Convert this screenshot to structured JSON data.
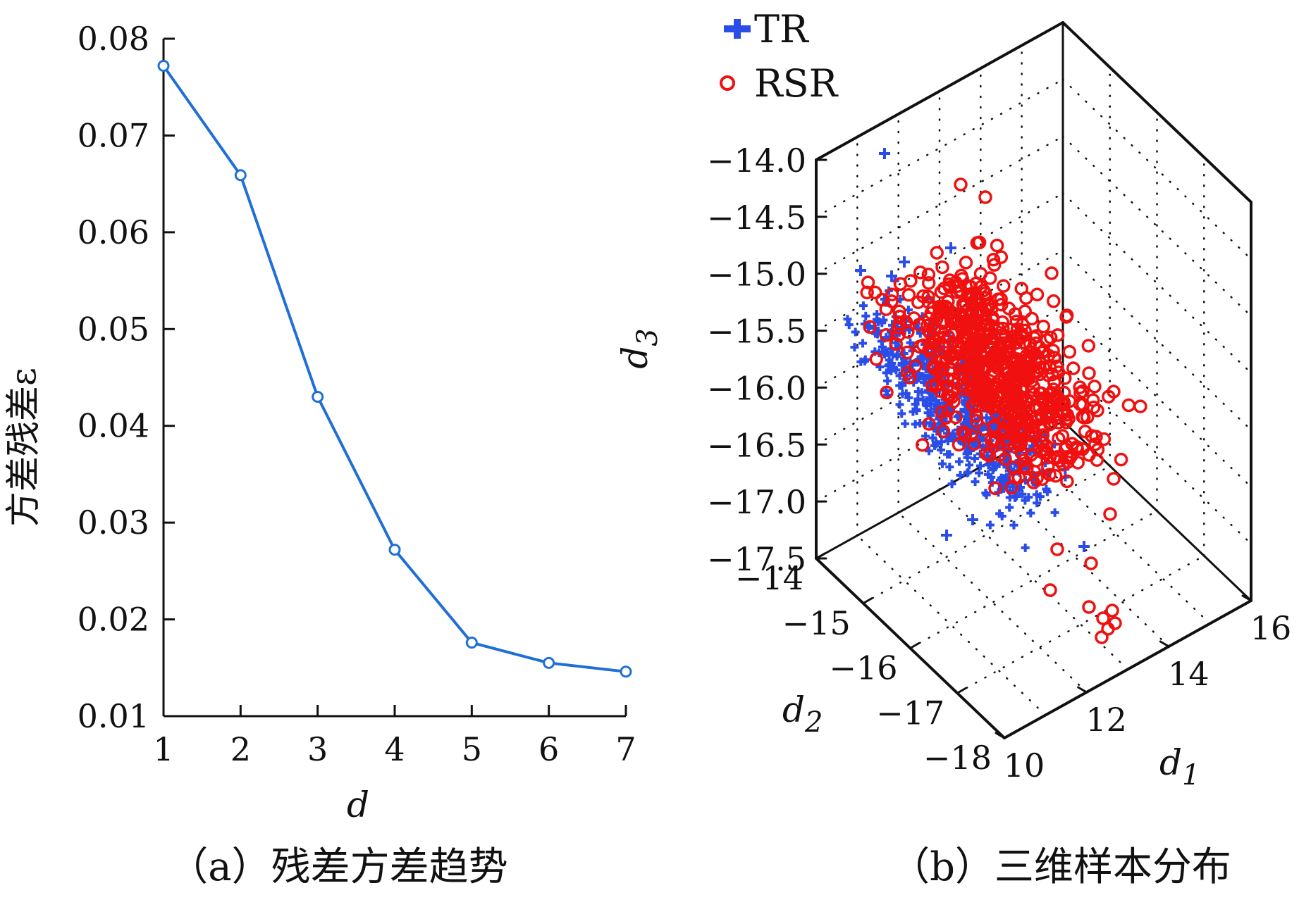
{
  "chart_data": [
    {
      "type": "line",
      "caption": "（a）残差方差趋势",
      "xlabel": "d",
      "ylabel": "方差残差ε",
      "x": [
        1,
        2,
        3,
        4,
        5,
        6,
        7
      ],
      "series": [
        {
          "values": [
            0.0772,
            0.0659,
            0.043,
            0.0272,
            0.0176,
            0.0155,
            0.0146
          ]
        }
      ],
      "xticks": [
        "1",
        "2",
        "3",
        "4",
        "5",
        "6",
        "7"
      ],
      "yticks": [
        "0.01",
        "0.02",
        "0.03",
        "0.04",
        "0.05",
        "0.06",
        "0.07",
        "0.08"
      ],
      "xlim": [
        1,
        7
      ],
      "ylim": [
        0.01,
        0.08
      ],
      "grid": false,
      "color": "#1f6fd6"
    },
    {
      "type": "scatter",
      "caption": "（b）三维样本分布",
      "xlabel": "d",
      "xlabel_sub": "1",
      "ylabel": "d",
      "ylabel_sub": "2",
      "zlabel": "d",
      "zlabel_sub": "3",
      "xlim": [
        10,
        16
      ],
      "ylim": [
        -18,
        -14
      ],
      "zlim": [
        -17.5,
        -14.0
      ],
      "xticks": [
        "10",
        "12",
        "14",
        "16"
      ],
      "yticks": [
        "-14",
        "-15",
        "-16",
        "-17",
        "-18"
      ],
      "zticks": [
        "-14.0",
        "-14.5",
        "-15.0",
        "-15.5",
        "-16.0",
        "-16.5",
        "-17.0",
        "-17.5"
      ],
      "grid": true,
      "legend_position": "top-left",
      "series": [
        {
          "name": "TR",
          "marker": "plus",
          "color": "#2a4de8"
        },
        {
          "name": "RSR",
          "marker": "circle",
          "color": "#f01010"
        }
      ]
    }
  ]
}
